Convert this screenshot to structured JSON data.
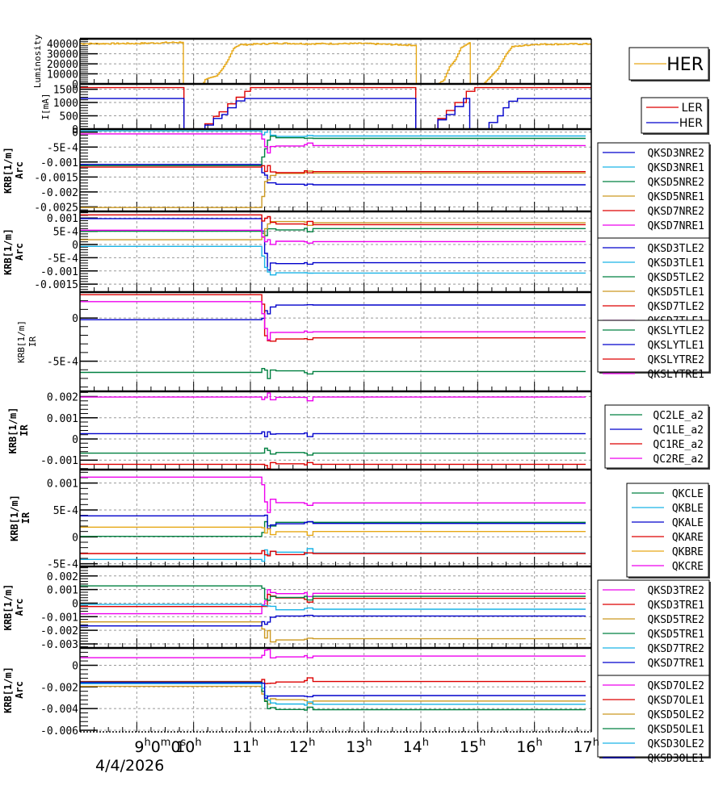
{
  "chart_data": [
    {
      "type": "line",
      "panel": "luminosity",
      "ylabel": "Luminosity",
      "ylim": [
        0,
        45000
      ],
      "yticks": [
        0,
        10000,
        20000,
        30000,
        40000
      ],
      "ytick_labels": [
        "0",
        "10000",
        "20000",
        "30000",
        "40000"
      ],
      "legend": {
        "placement": "right",
        "entries": [
          "HER"
        ],
        "style": "big"
      },
      "series": [
        {
          "name": "HER",
          "color": "#e6a817",
          "points": [
            [
              8.0,
              40000
            ],
            [
              9.0,
              40300
            ],
            [
              9.8,
              41500
            ],
            [
              9.82,
              0
            ],
            [
              10.15,
              0
            ],
            [
              10.2,
              4000
            ],
            [
              10.4,
              8000
            ],
            [
              10.5,
              15000
            ],
            [
              10.6,
              24000
            ],
            [
              10.7,
              36000
            ],
            [
              10.8,
              39000
            ],
            [
              11.5,
              40500
            ],
            [
              12.0,
              40000
            ],
            [
              13.0,
              40200
            ],
            [
              13.9,
              38500
            ],
            [
              13.92,
              0
            ],
            [
              14.3,
              0
            ],
            [
              14.4,
              4000
            ],
            [
              14.5,
              17000
            ],
            [
              14.6,
              24000
            ],
            [
              14.7,
              36000
            ],
            [
              14.85,
              41000
            ],
            [
              14.87,
              0
            ],
            [
              15.1,
              0
            ],
            [
              15.2,
              6000
            ],
            [
              15.35,
              15000
            ],
            [
              15.5,
              30000
            ],
            [
              15.6,
              37000
            ],
            [
              16.0,
              39500
            ],
            [
              17.0,
              39800
            ]
          ]
        }
      ]
    },
    {
      "type": "line",
      "panel": "current",
      "ylabel": "I[mA]",
      "ylim": [
        0,
        1700
      ],
      "yticks": [
        0,
        500,
        1000,
        1500
      ],
      "ytick_labels": [
        "0",
        "500",
        "1000",
        "1500"
      ],
      "legend": {
        "placement": "right",
        "entries": [
          "LER",
          "HER"
        ],
        "style": "mid"
      },
      "series": [
        {
          "name": "LER",
          "color": "#dd0000",
          "points": [
            [
              8.0,
              1560
            ],
            [
              9.82,
              1560
            ],
            [
              9.83,
              0
            ],
            [
              10.1,
              0
            ],
            [
              10.2,
              200
            ],
            [
              10.35,
              480
            ],
            [
              10.45,
              650
            ],
            [
              10.6,
              950
            ],
            [
              10.75,
              1200
            ],
            [
              10.9,
              1420
            ],
            [
              11.0,
              1560
            ],
            [
              13.9,
              1560
            ],
            [
              13.91,
              0
            ],
            [
              14.2,
              0
            ],
            [
              14.3,
              400
            ],
            [
              14.45,
              700
            ],
            [
              14.6,
              1000
            ],
            [
              14.8,
              1420
            ],
            [
              14.95,
              1560
            ],
            [
              17.0,
              1560
            ]
          ]
        },
        {
          "name": "HER",
          "color": "#0000cc",
          "points": [
            [
              8.0,
              1150
            ],
            [
              9.82,
              1150
            ],
            [
              9.83,
              0
            ],
            [
              10.1,
              0
            ],
            [
              10.2,
              150
            ],
            [
              10.35,
              400
            ],
            [
              10.5,
              550
            ],
            [
              10.6,
              800
            ],
            [
              10.75,
              1060
            ],
            [
              10.9,
              1150
            ],
            [
              13.9,
              1150
            ],
            [
              13.91,
              0
            ],
            [
              14.2,
              0
            ],
            [
              14.3,
              350
            ],
            [
              14.45,
              550
            ],
            [
              14.6,
              850
            ],
            [
              14.75,
              1150
            ],
            [
              14.85,
              1150
            ],
            [
              14.86,
              0
            ],
            [
              15.1,
              0
            ],
            [
              15.2,
              250
            ],
            [
              15.35,
              500
            ],
            [
              15.45,
              800
            ],
            [
              15.55,
              1050
            ],
            [
              15.7,
              1150
            ],
            [
              17.0,
              1150
            ]
          ]
        }
      ]
    },
    {
      "type": "line",
      "panel": "arc-nre",
      "ylabel": [
        "KRB[1/m]",
        "Arc"
      ],
      "ylim": [
        -0.00265,
        0.0001
      ],
      "yticks": [
        0,
        -0.0005,
        -0.001,
        -0.0015,
        -0.002,
        -0.0025
      ],
      "ytick_labels": [
        "0",
        "-5E-4",
        "-0.001",
        "-0.0015",
        "-0.002",
        "-0.0025"
      ],
      "legend": {
        "placement": "right",
        "entries": [
          "QKSD3NRE2",
          "QKSD3NRE1",
          "QKSD5NRE2",
          "QKSD5NRE1",
          "QKSD7NRE2",
          "QKSD7NRE1"
        ]
      },
      "series": [
        {
          "name": "QKSD3NRE2",
          "color": "#0000cc",
          "before": -0.00108,
          "after": -0.00176
        },
        {
          "name": "QKSD3NRE1",
          "color": "#1ab3e6",
          "before": 4e-05,
          "after": -0.00013
        },
        {
          "name": "QKSD5NRE2",
          "color": "#008040",
          "before": -0.00112,
          "after": -0.00021
        },
        {
          "name": "QKSD5NRE1",
          "color": "#cc9922",
          "before": -0.00252,
          "after": -0.00137
        },
        {
          "name": "QKSD7NRE2",
          "color": "#dd0000",
          "before": -0.00117,
          "after": -0.00132
        },
        {
          "name": "QKSD7NRE1",
          "color": "#ee00ee",
          "before": -6e-05,
          "after": -0.00045
        }
      ]
    },
    {
      "type": "line",
      "panel": "arc-tle",
      "ylabel": [
        "KRB[1/m]",
        "Arc"
      ],
      "ylim": [
        -0.0018,
        0.00125
      ],
      "yticks": [
        0.001,
        0.0005,
        0,
        -0.0005,
        -0.001,
        -0.0015
      ],
      "ytick_labels": [
        "0.001",
        "5E-4",
        "0",
        "-5E-4",
        "-0.001",
        "-0.0015"
      ],
      "legend": {
        "placement": "right",
        "entries": [
          "QKSD3TLE2",
          "QKSD3TLE1",
          "QKSD5TLE2",
          "QKSD5TLE1",
          "QKSD7TLE2",
          "QKSD7TLE1"
        ]
      },
      "series": [
        {
          "name": "QKSD3TLE2",
          "color": "#0000cc",
          "before": 0.00098,
          "after": -0.00069
        },
        {
          "name": "QKSD3TLE1",
          "color": "#1ab3e6",
          "before": -7e-05,
          "after": -0.00108
        },
        {
          "name": "QKSD5TLE2",
          "color": "#008040",
          "before": 0.0005,
          "after": 0.0006
        },
        {
          "name": "QKSD5TLE1",
          "color": "#cc9922",
          "before": 0.00018,
          "after": 0.00082
        },
        {
          "name": "QKSD7TLE2",
          "color": "#dd0000",
          "before": 0.00112,
          "after": 0.00075
        },
        {
          "name": "QKSD7TLE1",
          "color": "#ee00ee",
          "before": 0.00054,
          "after": 0.00011
        }
      ]
    },
    {
      "type": "line",
      "panel": "ir-sly",
      "ylabel": [
        "KRB[1/m]",
        "IR"
      ],
      "ylim": [
        -0.00085,
        0.0003
      ],
      "yticks": [
        0,
        -0.0005
      ],
      "ytick_labels": [
        "0",
        "-5E-4"
      ],
      "legend": {
        "placement": "right",
        "entries": [
          "QKSLYTLE2",
          "QKSLYTLE1",
          "QKSLYTRE2",
          "QKSLYTRE1"
        ]
      },
      "series": [
        {
          "name": "QKSLYTLE2",
          "color": "#008040",
          "before": -0.00063,
          "after": -0.00062
        },
        {
          "name": "QKSLYTLE1",
          "color": "#0000cc",
          "before": -2e-05,
          "after": 0.00015
        },
        {
          "name": "QKSLYTRE2",
          "color": "#dd0000",
          "before": 0.00027,
          "after": -0.00023
        },
        {
          "name": "QKSLYTRE1",
          "color": "#ee00ee",
          "before": 0.00019,
          "after": -0.00016
        }
      ]
    },
    {
      "type": "line",
      "panel": "ir-qc",
      "ylabel": [
        "KRB[1/m]",
        "IR"
      ],
      "ylim": [
        -0.00145,
        0.00225
      ],
      "yticks": [
        0.002,
        0.001,
        0,
        -0.001
      ],
      "ytick_labels": [
        "0.002",
        "0.001",
        "0",
        "-0.001"
      ],
      "legend": {
        "placement": "right",
        "entries": [
          "QC2LE_a2",
          "QC1LE_a2",
          "QC1RE_a2",
          "QC2RE_a2"
        ]
      },
      "series": [
        {
          "name": "QC2LE_a2",
          "color": "#008040",
          "before": -0.00067,
          "after": -0.00067
        },
        {
          "name": "QC1LE_a2",
          "color": "#0000cc",
          "before": 0.00025,
          "after": 0.00025
        },
        {
          "name": "QC1RE_a2",
          "color": "#dd0000",
          "before": -0.0012,
          "after": -0.0012
        },
        {
          "name": "QC2RE_a2",
          "color": "#ee00ee",
          "before": 0.00198,
          "after": 0.00198
        }
      ]
    },
    {
      "type": "line",
      "panel": "ir-qk",
      "ylabel": [
        "KRB[1/m]",
        "IR"
      ],
      "ylim": [
        -0.00055,
        0.00125
      ],
      "yticks": [
        0.001,
        0.0005,
        0,
        -0.0005
      ],
      "ytick_labels": [
        "0.001",
        "5E-4",
        "0",
        "-5E-4"
      ],
      "legend": {
        "placement": "right",
        "entries": [
          "QKCLE",
          "QKBLE",
          "QKALE",
          "QKARE",
          "QKBRE",
          "QKCRE"
        ]
      },
      "series": [
        {
          "name": "QKCLE",
          "color": "#008040",
          "before": 1e-05,
          "after": 0.00027
        },
        {
          "name": "QKBLE",
          "color": "#1ab3e6",
          "before": -0.00042,
          "after": -0.0003
        },
        {
          "name": "QKALE",
          "color": "#0000cc",
          "before": 0.00039,
          "after": 0.00025
        },
        {
          "name": "QKARE",
          "color": "#dd0000",
          "before": -0.00031,
          "after": -0.00031
        },
        {
          "name": "QKBRE",
          "color": "#e6a817",
          "before": 0.00018,
          "after": 0.0001
        },
        {
          "name": "QKCRE",
          "color": "#ee00ee",
          "before": 0.00111,
          "after": 0.00063
        }
      ]
    },
    {
      "type": "line",
      "panel": "arc-tre",
      "ylabel": [
        "KRB[1/m]",
        "Arc"
      ],
      "ylim": [
        -0.0033,
        0.0027
      ],
      "yticks": [
        0.002,
        0.001,
        0,
        -0.001,
        -0.002,
        -0.003
      ],
      "ytick_labels": [
        "0.002",
        "0.001",
        "0",
        "-0.001",
        "-0.002",
        "-0.003"
      ],
      "legend": {
        "placement": "right",
        "entries": [
          "QKSD3TRE2",
          "QKSD3TRE1",
          "QKSD5TRE2",
          "QKSD5TRE1",
          "QKSD7TRE2",
          "QKSD7TRE1"
        ]
      },
      "series": [
        {
          "name": "QKSD3TRE2",
          "color": "#ee00ee",
          "before": -0.00078,
          "after": 0.00072
        },
        {
          "name": "QKSD3TRE1",
          "color": "#dd0000",
          "before": -0.00025,
          "after": 0.00035
        },
        {
          "name": "QKSD5TRE2",
          "color": "#cc9922",
          "before": -0.00138,
          "after": -0.00262
        },
        {
          "name": "QKSD5TRE1",
          "color": "#008040",
          "before": 0.00127,
          "after": 0.0005
        },
        {
          "name": "QKSD7TRE2",
          "color": "#1ab3e6",
          "before": -0.0001,
          "after": -0.00045
        },
        {
          "name": "QKSD7TRE1",
          "color": "#0000cc",
          "before": -0.00168,
          "after": -0.00095
        }
      ]
    },
    {
      "type": "line",
      "panel": "arc-ole",
      "ylabel": [
        "KRB[1/m]",
        "Arc"
      ],
      "ylim": [
        -0.00615,
        0.0016
      ],
      "yticks": [
        0,
        -0.002,
        -0.004,
        -0.006
      ],
      "ytick_labels": [
        "0",
        "-0.002",
        "-0.004",
        "-0.006"
      ],
      "legend": {
        "placement": "right",
        "entries": [
          "QKSD7OLE2",
          "QKSD7OLE1",
          "QKSD5OLE2",
          "QKSD5OLE1",
          "QKSD3OLE2",
          "QKSD3OLE1"
        ]
      },
      "series": [
        {
          "name": "QKSD7OLE2",
          "color": "#ee00ee",
          "before": 0.0007,
          "after": 0.00085
        },
        {
          "name": "QKSD7OLE1",
          "color": "#dd0000",
          "before": -0.0015,
          "after": -0.0015
        },
        {
          "name": "QKSD5OLE2",
          "color": "#cc9922",
          "before": -0.00195,
          "after": -0.0033
        },
        {
          "name": "QKSD5OLE1",
          "color": "#008040",
          "before": -0.00155,
          "after": -0.0041
        },
        {
          "name": "QKSD3OLE2",
          "color": "#1ab3e6",
          "before": -0.0017,
          "after": -0.0036
        },
        {
          "name": "QKSD3OLE1",
          "color": "#0000cc",
          "before": -0.0016,
          "after": -0.0028
        }
      ]
    }
  ],
  "x_axis": {
    "start_hour": 8,
    "end_hour": 17,
    "tick_labels": [
      {
        "hour": 9,
        "base": "9",
        "sup": "h",
        "extra": "0",
        "sup2": "m",
        "extra2": "0",
        "sup3": "s"
      },
      {
        "hour": 10,
        "base": "10",
        "sup": "h"
      },
      {
        "hour": 11,
        "base": "11",
        "sup": "h"
      },
      {
        "hour": 12,
        "base": "12",
        "sup": "h"
      },
      {
        "hour": 13,
        "base": "13",
        "sup": "h"
      },
      {
        "hour": 14,
        "base": "14",
        "sup": "h"
      },
      {
        "hour": 15,
        "base": "15",
        "sup": "h"
      },
      {
        "hour": 16,
        "base": "16",
        "sup": "h"
      },
      {
        "hour": 17,
        "base": "17",
        "sup": "h"
      }
    ],
    "date_label": "4/4/2026",
    "event_window": {
      "start": 11.15,
      "settle": 11.45,
      "second": 12.0,
      "end": 12.1
    }
  }
}
